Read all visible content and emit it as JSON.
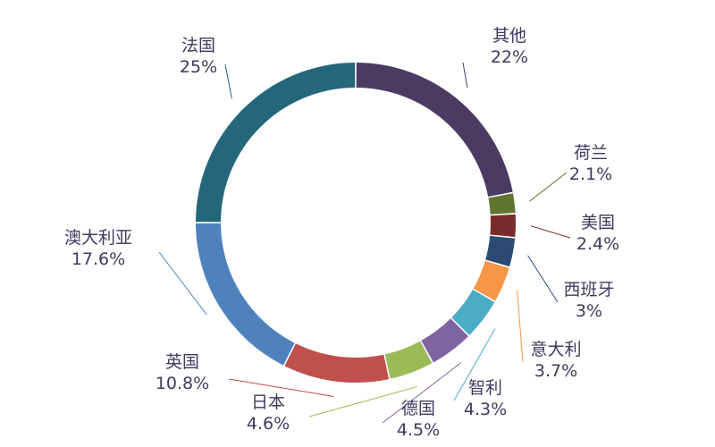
{
  "chart_data": {
    "type": "pie",
    "style": "donut",
    "title": "",
    "unit": "%",
    "slices": [
      {
        "label": "其他",
        "value": 22,
        "value_text": "22%",
        "color": "#4b3b63"
      },
      {
        "label": "荷兰",
        "value": 2.1,
        "value_text": "2.1%",
        "color": "#5e742f"
      },
      {
        "label": "美国",
        "value": 2.4,
        "value_text": "2.4%",
        "color": "#7a2c2b"
      },
      {
        "label": "西班牙",
        "value": 3,
        "value_text": "3%",
        "color": "#2c4a74"
      },
      {
        "label": "意大利",
        "value": 3.7,
        "value_text": "3.7%",
        "color": "#f79646"
      },
      {
        "label": "智利",
        "value": 4.3,
        "value_text": "4.3%",
        "color": "#4bacc6"
      },
      {
        "label": "德国",
        "value": 4.5,
        "value_text": "4.5%",
        "color": "#8064a2"
      },
      {
        "label": "日本",
        "value": 4.6,
        "value_text": "4.6%",
        "color": "#9bbb59"
      },
      {
        "label": "英国",
        "value": 10.8,
        "value_text": "10.8%",
        "color": "#c0504d"
      },
      {
        "label": "澳大利亚",
        "value": 17.6,
        "value_text": "17.6%",
        "color": "#4f81bd"
      },
      {
        "label": "法国",
        "value": 25,
        "value_text": "25%",
        "color": "#25677a"
      }
    ],
    "legend": "none",
    "grid": false
  }
}
